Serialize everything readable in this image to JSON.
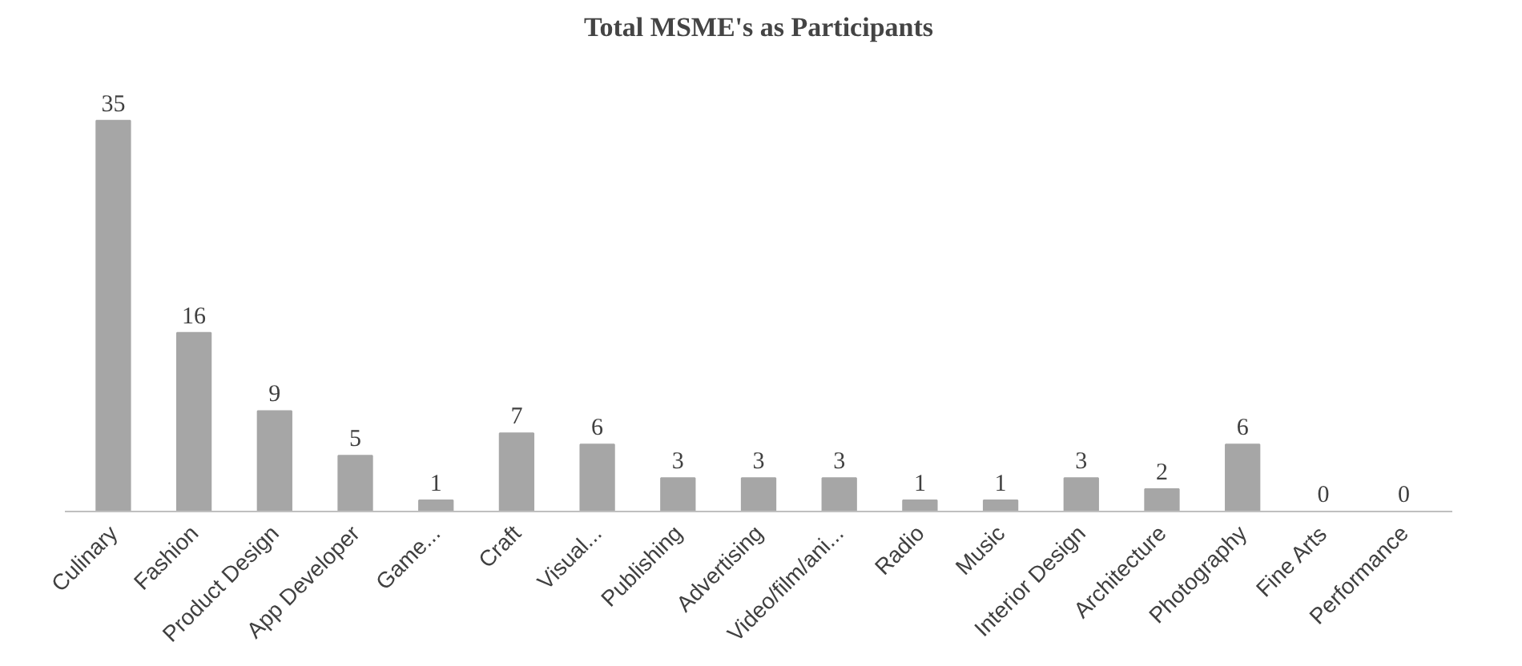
{
  "chart_data": {
    "type": "bar",
    "title": "Total MSME's as Participants",
    "categories": [
      "Culinary",
      "Fashion",
      "Product Design",
      "App Developer",
      "Game...",
      "Craft",
      "Visual...",
      "Publishing",
      "Advertising",
      "Video/film/ani...",
      "Radio",
      "Music",
      "Interior Design",
      "Architecture",
      "Photography",
      "Fine Arts",
      "Performance"
    ],
    "values": [
      35,
      16,
      9,
      5,
      1,
      7,
      6,
      3,
      3,
      3,
      1,
      1,
      3,
      2,
      6,
      0,
      0
    ],
    "color": "#a6a6a6",
    "data_labels": true,
    "grid": false
  }
}
